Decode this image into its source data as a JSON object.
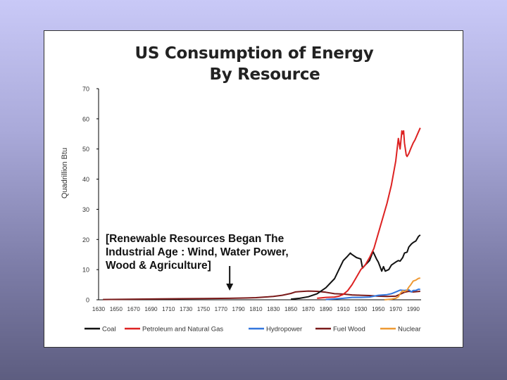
{
  "chart_data": {
    "type": "line",
    "title_line1": "US Consumption of Energy",
    "title_line2": "By Resource",
    "ylabel": "Quadrillion Btu",
    "xlabel": "",
    "ylim": [
      0,
      70
    ],
    "xlim": [
      1630,
      1999
    ],
    "y_ticks": [
      "70",
      "60",
      "50",
      "40",
      "30",
      "20",
      "10",
      "0"
    ],
    "x_tick_labels": [
      "1630",
      "1650",
      "1670",
      "1690",
      "1710",
      "1730",
      "1750",
      "1770",
      "1790",
      "1810",
      "1830",
      "1850",
      "1870",
      "1890",
      "1910",
      "1930",
      "1950",
      "1970",
      "1990"
    ],
    "legend_position": "bottom",
    "series": [
      {
        "name": "Coal",
        "color": "#111111",
        "points": [
          [
            1850,
            0.2
          ],
          [
            1860,
            0.5
          ],
          [
            1870,
            1.0
          ],
          [
            1880,
            2.0
          ],
          [
            1890,
            4.0
          ],
          [
            1900,
            7.0
          ],
          [
            1905,
            10.0
          ],
          [
            1910,
            13.0
          ],
          [
            1915,
            14.5
          ],
          [
            1918,
            15.5
          ],
          [
            1920,
            15.0
          ],
          [
            1925,
            14.0
          ],
          [
            1930,
            13.5
          ],
          [
            1932,
            10.5
          ],
          [
            1935,
            11.5
          ],
          [
            1940,
            13.0
          ],
          [
            1944,
            16.0
          ],
          [
            1948,
            13.5
          ],
          [
            1950,
            12.5
          ],
          [
            1952,
            11.0
          ],
          [
            1954,
            9.5
          ],
          [
            1956,
            11.0
          ],
          [
            1958,
            9.5
          ],
          [
            1962,
            10.0
          ],
          [
            1965,
            11.5
          ],
          [
            1970,
            12.5
          ],
          [
            1973,
            13.0
          ],
          [
            1975,
            12.8
          ],
          [
            1978,
            14.0
          ],
          [
            1980,
            15.5
          ],
          [
            1983,
            15.8
          ],
          [
            1985,
            17.5
          ],
          [
            1988,
            18.5
          ],
          [
            1990,
            19.0
          ],
          [
            1993,
            19.5
          ],
          [
            1996,
            21.0
          ],
          [
            1998,
            21.5
          ]
        ]
      },
      {
        "name": "Petroleum and Natural Gas",
        "color": "#dd2222",
        "points": [
          [
            1880,
            0.5
          ],
          [
            1890,
            0.8
          ],
          [
            1900,
            0.9
          ],
          [
            1905,
            1.2
          ],
          [
            1910,
            1.8
          ],
          [
            1915,
            3.0
          ],
          [
            1920,
            5.0
          ],
          [
            1925,
            7.5
          ],
          [
            1930,
            10.0
          ],
          [
            1935,
            11.5
          ],
          [
            1940,
            14.0
          ],
          [
            1945,
            17.0
          ],
          [
            1950,
            22.0
          ],
          [
            1955,
            27.0
          ],
          [
            1960,
            32.0
          ],
          [
            1965,
            38.0
          ],
          [
            1970,
            46.0
          ],
          [
            1973,
            53.5
          ],
          [
            1975,
            50.0
          ],
          [
            1977,
            56.0
          ],
          [
            1978,
            55.0
          ],
          [
            1979,
            56.0
          ],
          [
            1980,
            52.0
          ],
          [
            1982,
            48.0
          ],
          [
            1983,
            47.5
          ],
          [
            1985,
            48.5
          ],
          [
            1987,
            50.0
          ],
          [
            1990,
            52.0
          ],
          [
            1992,
            53.0
          ],
          [
            1995,
            55.0
          ],
          [
            1998,
            57.0
          ]
        ]
      },
      {
        "name": "Hydropower",
        "color": "#3377dd",
        "points": [
          [
            1890,
            0.1
          ],
          [
            1900,
            0.3
          ],
          [
            1910,
            0.5
          ],
          [
            1920,
            0.8
          ],
          [
            1930,
            0.8
          ],
          [
            1940,
            0.9
          ],
          [
            1950,
            1.5
          ],
          [
            1960,
            1.7
          ],
          [
            1965,
            2.0
          ],
          [
            1970,
            2.6
          ],
          [
            1975,
            3.2
          ],
          [
            1980,
            3.1
          ],
          [
            1985,
            3.3
          ],
          [
            1988,
            2.6
          ],
          [
            1990,
            3.1
          ],
          [
            1993,
            3.1
          ],
          [
            1996,
            3.5
          ],
          [
            1998,
            3.4
          ]
        ]
      },
      {
        "name": "Fuel Wood",
        "color": "#7a1a1a",
        "points": [
          [
            1635,
            0.1
          ],
          [
            1700,
            0.3
          ],
          [
            1750,
            0.4
          ],
          [
            1780,
            0.5
          ],
          [
            1800,
            0.6
          ],
          [
            1810,
            0.7
          ],
          [
            1820,
            0.9
          ],
          [
            1830,
            1.1
          ],
          [
            1840,
            1.5
          ],
          [
            1850,
            2.1
          ],
          [
            1855,
            2.6
          ],
          [
            1860,
            2.7
          ],
          [
            1870,
            2.9
          ],
          [
            1880,
            2.8
          ],
          [
            1890,
            2.5
          ],
          [
            1900,
            2.0
          ],
          [
            1910,
            1.9
          ],
          [
            1920,
            1.6
          ],
          [
            1930,
            1.5
          ],
          [
            1940,
            1.4
          ],
          [
            1950,
            1.2
          ],
          [
            1960,
            1.1
          ],
          [
            1970,
            1.2
          ],
          [
            1980,
            2.5
          ],
          [
            1985,
            2.8
          ],
          [
            1990,
            2.6
          ],
          [
            1998,
            2.8
          ]
        ]
      },
      {
        "name": "Nuclear",
        "color": "#ee9933",
        "points": [
          [
            1957,
            0.0
          ],
          [
            1960,
            0.1
          ],
          [
            1965,
            0.2
          ],
          [
            1970,
            0.5
          ],
          [
            1973,
            1.0
          ],
          [
            1975,
            2.0
          ],
          [
            1978,
            3.0
          ],
          [
            1980,
            2.7
          ],
          [
            1983,
            3.2
          ],
          [
            1985,
            4.2
          ],
          [
            1987,
            4.9
          ],
          [
            1990,
            6.2
          ],
          [
            1993,
            6.5
          ],
          [
            1996,
            7.1
          ],
          [
            1998,
            7.2
          ]
        ]
      }
    ],
    "annotation": {
      "lines": [
        "[Renewable Resources Began The",
        "Industrial Age : Wind, Water Power,",
        "Wood & Agriculture]"
      ],
      "arrow_target_x": 1780
    }
  }
}
